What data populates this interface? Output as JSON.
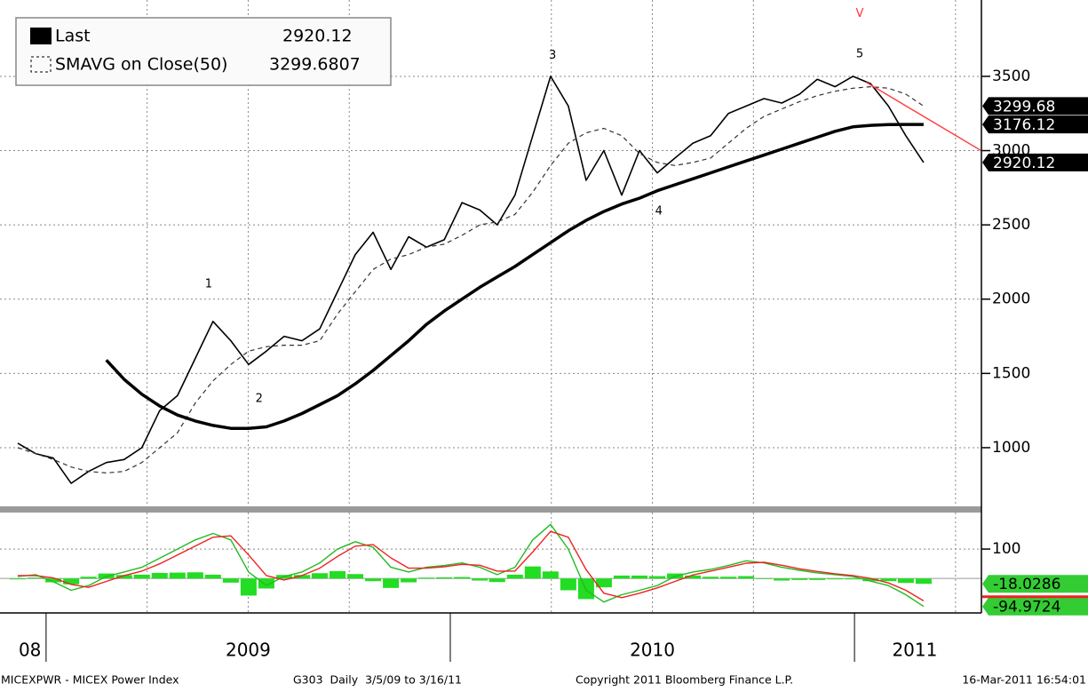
{
  "chart_data": [
    {
      "type": "line",
      "xlim": [
        2008.886,
        2011.314
      ],
      "ylim": [
        605,
        4014
      ],
      "yticks": [
        1000,
        1500,
        2000,
        2500,
        3000,
        3500
      ],
      "grid": true,
      "xgrid": [
        2009.25,
        2009.5,
        2009.75,
        2010.25,
        2010.5,
        2010.75,
        2011.25
      ],
      "year_dividers": [
        2009,
        2010,
        2011
      ],
      "year_labels": [
        {
          "value": 2008.96,
          "label": "08"
        },
        {
          "value": 2009.5,
          "label": "2009"
        },
        {
          "value": 2010.5,
          "label": "2010"
        },
        {
          "value": 2011.149,
          "label": "2011"
        }
      ],
      "x": [
        2008.93,
        2008.974,
        2009.018,
        2009.062,
        2009.105,
        2009.149,
        2009.193,
        2009.237,
        2009.281,
        2009.325,
        2009.369,
        2009.413,
        2009.457,
        2009.501,
        2009.545,
        2009.589,
        2009.633,
        2009.677,
        2009.721,
        2009.765,
        2009.809,
        2009.853,
        2009.897,
        2009.941,
        2009.985,
        2010.029,
        2010.073,
        2010.116,
        2010.16,
        2010.204,
        2010.248,
        2010.292,
        2010.336,
        2010.38,
        2010.424,
        2010.468,
        2010.512,
        2010.556,
        2010.6,
        2010.644,
        2010.688,
        2010.732,
        2010.776,
        2010.82,
        2010.864,
        2010.908,
        2010.952,
        2010.996,
        2011.04,
        2011.084,
        2011.127,
        2011.171
      ],
      "series": [
        {
          "name": "Last",
          "color": "#000000",
          "line_width": 1.6,
          "legend_value": 2920.12,
          "tag": 2920.12,
          "values": [
            1030,
            960,
            930,
            760,
            840,
            900,
            920,
            1000,
            1250,
            1350,
            1600,
            1850,
            1720,
            1560,
            1650,
            1750,
            1720,
            1800,
            2050,
            2300,
            2450,
            2200,
            2420,
            2350,
            2400,
            2650,
            2600,
            2500,
            2700,
            3100,
            3500,
            3300,
            2800,
            3000,
            2700,
            3000,
            2850,
            2950,
            3050,
            3100,
            3250,
            3300,
            3350,
            3320,
            3380,
            3480,
            3430,
            3500,
            3450,
            3300,
            3100,
            2920
          ]
        },
        {
          "name": "SMAVG on Close(50)",
          "color": "#333333",
          "line_width": 1.2,
          "dashed": true,
          "legend_value": 3299.6807,
          "tag": 3299.68,
          "values": [
            1000,
            960,
            920,
            870,
            840,
            830,
            840,
            900,
            1000,
            1100,
            1300,
            1450,
            1560,
            1650,
            1680,
            1690,
            1690,
            1720,
            1900,
            2050,
            2200,
            2270,
            2300,
            2350,
            2370,
            2430,
            2500,
            2520,
            2570,
            2720,
            2900,
            3050,
            3120,
            3150,
            3100,
            2980,
            2920,
            2900,
            2920,
            2950,
            3050,
            3150,
            3230,
            3280,
            3330,
            3370,
            3400,
            3420,
            3430,
            3420,
            3380,
            3300
          ]
        },
        {
          "color": "#000000",
          "line_width": 3.5,
          "tag": 3176.12,
          "values": [
            null,
            null,
            null,
            null,
            null,
            1590,
            1460,
            1360,
            1280,
            1220,
            1180,
            1150,
            1130,
            1130,
            1140,
            1180,
            1230,
            1290,
            1350,
            1430,
            1520,
            1620,
            1720,
            1830,
            1920,
            2000,
            2080,
            2150,
            2220,
            2300,
            2380,
            2460,
            2530,
            2590,
            2640,
            2680,
            2730,
            2770,
            2810,
            2850,
            2890,
            2930,
            2970,
            3010,
            3050,
            3090,
            3130,
            3160,
            3170,
            3175,
            3176,
            3176.12
          ]
        }
      ],
      "annotations": [
        {
          "label": "1",
          "x": 2009.402,
          "y": 2100,
          "color": "#000000"
        },
        {
          "label": "2",
          "x": 2009.527,
          "y": 1330,
          "color": "#000000"
        },
        {
          "label": "3",
          "x": 2010.253,
          "y": 3640,
          "color": "#000000"
        },
        {
          "label": "4",
          "x": 2010.516,
          "y": 2590,
          "color": "#000000"
        },
        {
          "label": "5",
          "x": 2011.013,
          "y": 3650,
          "color": "#000000"
        },
        {
          "label": "V",
          "x": 2011.013,
          "y": 3920,
          "color": "#ff3333"
        }
      ],
      "trendline": {
        "color": "#ff4444",
        "x": [
          2011.029,
          2011.314
        ],
        "y": [
          3460,
          2999
        ]
      }
    },
    {
      "type": "line",
      "xlim": [
        2008.886,
        2011.314
      ],
      "ylim": [
        -117,
        224
      ],
      "yticks": [
        100
      ],
      "grid": true,
      "x": [
        2008.93,
        2008.974,
        2009.018,
        2009.062,
        2009.105,
        2009.149,
        2009.193,
        2009.237,
        2009.281,
        2009.325,
        2009.369,
        2009.413,
        2009.457,
        2009.501,
        2009.545,
        2009.589,
        2009.633,
        2009.677,
        2009.721,
        2009.765,
        2009.809,
        2009.853,
        2009.897,
        2009.941,
        2009.985,
        2010.029,
        2010.073,
        2010.116,
        2010.16,
        2010.204,
        2010.248,
        2010.292,
        2010.336,
        2010.38,
        2010.424,
        2010.468,
        2010.512,
        2010.556,
        2010.6,
        2010.644,
        2010.688,
        2010.732,
        2010.776,
        2010.82,
        2010.864,
        2010.908,
        2010.952,
        2010.996,
        2011.04,
        2011.084,
        2011.127,
        2011.171
      ],
      "histogram": {
        "color": "#22dd22",
        "tag": -18.0286,
        "values": [
          -3,
          3,
          -13,
          -20,
          6,
          17,
          12,
          13,
          19,
          20,
          21,
          13,
          -14,
          -58,
          -34,
          12,
          12,
          18,
          25,
          15,
          -9,
          -32,
          -13,
          3,
          4,
          5,
          -7,
          -12,
          13,
          41,
          24,
          -40,
          -70,
          -30,
          10,
          10,
          8,
          17,
          10,
          6,
          6,
          8,
          -2,
          -7,
          -5,
          -5,
          -3,
          -3,
          -9,
          -9,
          -15,
          -18.0286
        ]
      },
      "series": [
        {
          "color": "#22bb22",
          "line_width": 1.4,
          "tag": -94.9724,
          "values": [
            7,
            13,
            -11,
            -40,
            -24,
            7,
            22,
            38,
            69,
            100,
            131,
            153,
            131,
            22,
            -24,
            7,
            22,
            53,
            100,
            125,
            106,
            38,
            22,
            38,
            44,
            53,
            38,
            13,
            38,
            131,
            184,
            100,
            -40,
            -80,
            -55,
            -40,
            -24,
            7,
            22,
            31,
            44,
            60,
            53,
            38,
            28,
            19,
            13,
            7,
            -9,
            -24,
            -55,
            -94.9724
          ]
        },
        {
          "color": "#ee2222",
          "line_width": 1.4,
          "values": [
            10,
            10,
            2,
            -20,
            -30,
            -10,
            10,
            25,
            50,
            80,
            110,
            140,
            145,
            80,
            10,
            -5,
            10,
            35,
            75,
            110,
            115,
            70,
            35,
            35,
            40,
            48,
            45,
            25,
            25,
            90,
            160,
            140,
            30,
            -50,
            -65,
            -50,
            -32,
            -10,
            12,
            25,
            38,
            52,
            55,
            45,
            33,
            24,
            16,
            10,
            0,
            -15,
            -40,
            -76
          ]
        }
      ]
    }
  ],
  "footer": {
    "ticker": "MICEXPWR - MICEX Power Index",
    "range": "G303  Daily  3/5/09 to 3/16/11",
    "copyright": "Copyright 2011 Bloomberg Finance L.P.",
    "timestamp": "16-Mar-2011 16:54:01"
  }
}
